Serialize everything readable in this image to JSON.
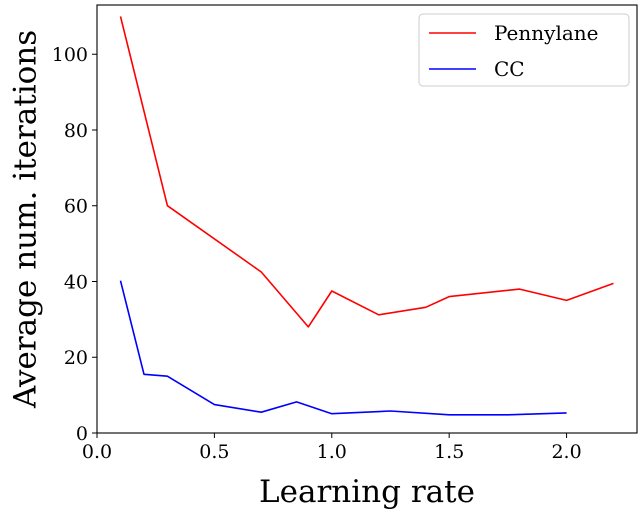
{
  "chart_data": {
    "type": "line",
    "title": "",
    "xlabel": "Learning rate",
    "ylabel": "Average num. iterations",
    "xlim": [
      0.0,
      2.3
    ],
    "ylim": [
      0,
      113
    ],
    "xticks": [
      0.0,
      0.5,
      1.0,
      1.5,
      2.0
    ],
    "xtick_labels": [
      "0.0",
      "0.5",
      "1.0",
      "1.5",
      "2.0"
    ],
    "yticks": [
      0,
      20,
      40,
      60,
      80,
      100
    ],
    "ytick_labels": [
      "0",
      "20",
      "40",
      "60",
      "80",
      "100"
    ],
    "grid": false,
    "legend_position": "top-right",
    "series": [
      {
        "name": "Pennylane",
        "color": "#ff0000",
        "x": [
          0.1,
          0.3,
          0.7,
          0.9,
          1.0,
          1.2,
          1.4,
          1.5,
          1.8,
          2.0,
          2.2
        ],
        "y": [
          110,
          60,
          42.5,
          28,
          37.5,
          31.2,
          33.2,
          36,
          38,
          35,
          39.5
        ]
      },
      {
        "name": "CC",
        "color": "#0000ff",
        "x": [
          0.1,
          0.2,
          0.3,
          0.5,
          0.7,
          0.85,
          1.0,
          1.25,
          1.5,
          1.75,
          2.0
        ],
        "y": [
          40.2,
          15.5,
          15,
          7.5,
          5.5,
          8.2,
          5.1,
          5.8,
          4.8,
          4.8,
          5.3
        ]
      }
    ]
  }
}
